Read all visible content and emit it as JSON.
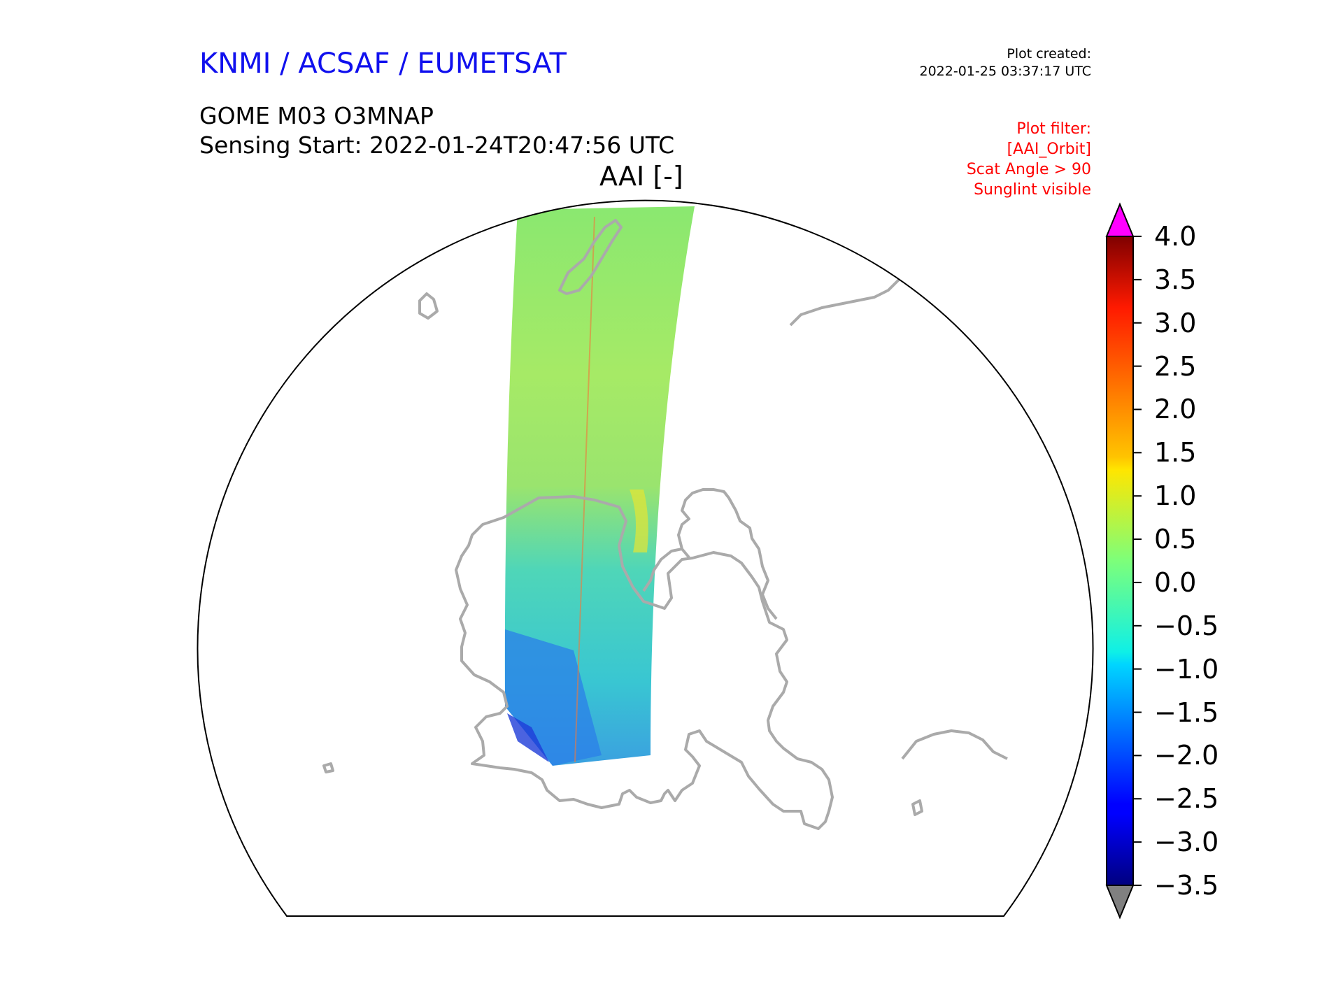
{
  "header": {
    "organisation": "KNMI / ACSAF / EUMETSAT",
    "product": "GOME M03 O3MNAP",
    "sensing_start": "Sensing Start: 2022-01-24T20:47:56 UTC",
    "variable": "AAI [-]"
  },
  "plot_created": {
    "label": "Plot created:",
    "timestamp": "2022-01-25 03:37:17 UTC"
  },
  "plot_filter": {
    "label": "Plot filter:",
    "lines": [
      "[AAI_Orbit]",
      "Scat Angle > 90",
      "Sunglint visible"
    ]
  },
  "colorbar": {
    "ticks": [
      "4.0",
      "3.5",
      "3.0",
      "2.5",
      "2.0",
      "1.5",
      "1.0",
      "0.5",
      "0.0",
      "−0.5",
      "−1.0",
      "−1.5",
      "−2.0",
      "−2.5",
      "−3.0",
      "−3.5"
    ],
    "min": -3.5,
    "max": 4.0,
    "extend_max_color": "#ff00ff",
    "extend_min_color": "#808080",
    "colormap": "jet"
  },
  "map": {
    "coastline_color": "#aaaaaa",
    "swath_colors": [
      "#3cd2b4",
      "#78e68c",
      "#a0eb64",
      "#28c8e6",
      "#1e64f0"
    ]
  }
}
